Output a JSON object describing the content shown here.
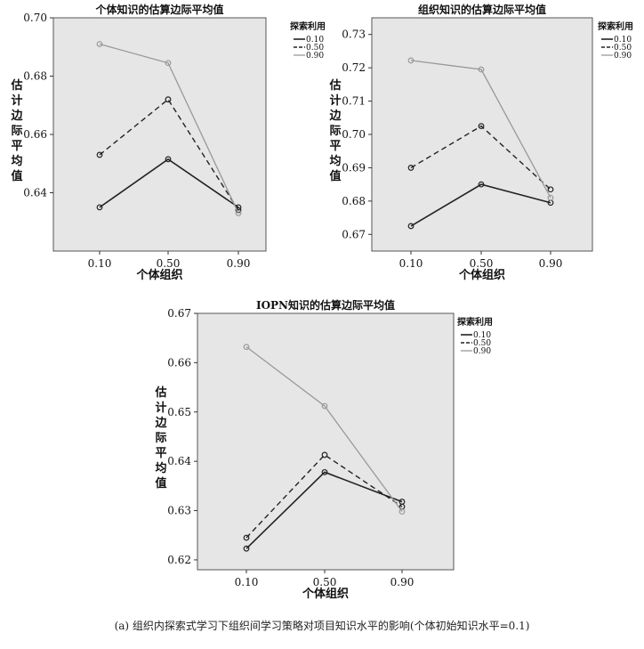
{
  "caption": "(a) 组织内探索式学习下组织间学习策略对项目知识水平的影响(个体初始知识水平=0.1)",
  "colors": {
    "s010": "#222222",
    "s050": "#222222",
    "s090": "#999999",
    "plot_bg": "#e6e6e6"
  },
  "chart_data": [
    {
      "type": "line",
      "title": "个体知识的估算边际平均值",
      "xlabel": "个体组织",
      "ylabel": "估计边际平均值",
      "categories": [
        "0.10",
        "0.50",
        "0.90"
      ],
      "ylim": [
        0.62,
        0.7
      ],
      "yticks": [
        "0.64",
        "0.66",
        "0.68",
        "0.70"
      ],
      "legend_title": "探索利用",
      "legend_position": "right",
      "series": [
        {
          "name": "0.10",
          "values": [
            0.635,
            0.6515,
            0.635
          ]
        },
        {
          "name": "0.50",
          "values": [
            0.653,
            0.672,
            0.634
          ]
        },
        {
          "name": "0.90",
          "values": [
            0.691,
            0.6845,
            0.633
          ]
        }
      ]
    },
    {
      "type": "line",
      "title": "组织知识的估算边际平均值",
      "xlabel": "个体组织",
      "ylabel": "估计边际平均值",
      "categories": [
        "0.10",
        "0.50",
        "0.90"
      ],
      "ylim": [
        0.665,
        0.735
      ],
      "yticks": [
        "0.67",
        "0.68",
        "0.69",
        "0.70",
        "0.71",
        "0.72",
        "0.73"
      ],
      "legend_title": "探索利用",
      "legend_position": "right",
      "series": [
        {
          "name": "0.10",
          "values": [
            0.6725,
            0.685,
            0.6795
          ]
        },
        {
          "name": "0.50",
          "values": [
            0.69,
            0.7025,
            0.6835
          ]
        },
        {
          "name": "0.90",
          "values": [
            0.7222,
            0.7195,
            0.681
          ]
        }
      ]
    },
    {
      "type": "line",
      "title": "IOPN知识的估算边际平均值",
      "xlabel": "个体组织",
      "ylabel": "估计边际平均值",
      "categories": [
        "0.10",
        "0.50",
        "0.90"
      ],
      "ylim": [
        0.618,
        0.67
      ],
      "yticks": [
        "0.62",
        "0.63",
        "0.64",
        "0.65",
        "0.66",
        "0.67"
      ],
      "legend_title": "探索利用",
      "legend_position": "right",
      "series": [
        {
          "name": "0.10",
          "values": [
            0.6223,
            0.6378,
            0.6318
          ]
        },
        {
          "name": "0.50",
          "values": [
            0.6245,
            0.6413,
            0.6308
          ]
        },
        {
          "name": "0.90",
          "values": [
            0.6632,
            0.6512,
            0.6298
          ]
        }
      ]
    }
  ]
}
